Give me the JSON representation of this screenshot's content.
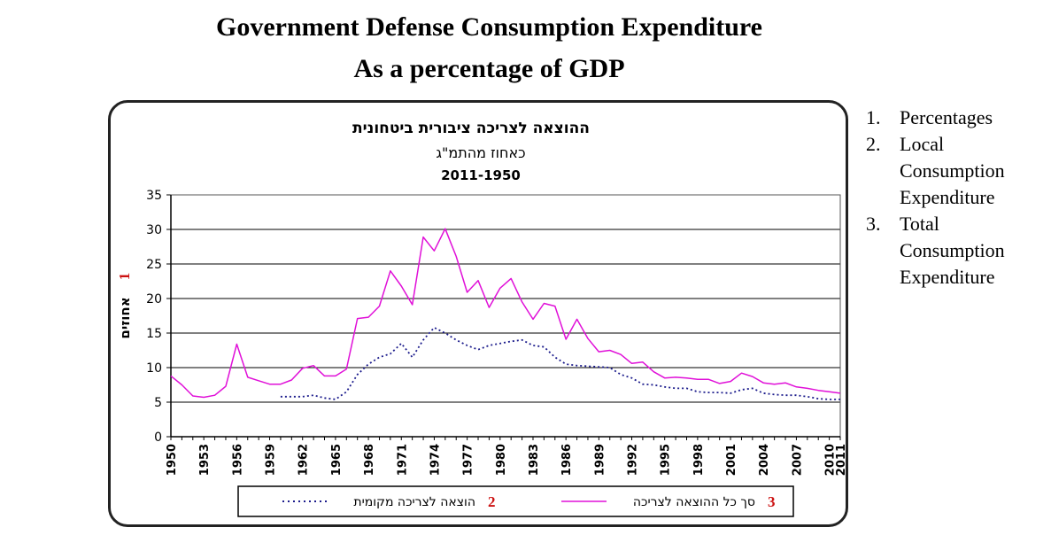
{
  "titles": [
    "Government Defense Consumption Expenditure",
    "As a percentage of GDP"
  ],
  "notes": [
    {
      "num": "1.",
      "text": "Percentages"
    },
    {
      "num": "2.",
      "text": "Local Consumption Expenditure"
    },
    {
      "num": "3.",
      "text": "Total Consumption Expenditure"
    }
  ],
  "chart_data": {
    "type": "line",
    "title": "ההוצאה לצריכה ציבורית ביטחונית",
    "subtitle": "כאחוז מהתמ\"ג",
    "subtitle2": "2011-1950",
    "ylabel": "אחוזים",
    "ylabel_marker": "1",
    "ylim": [
      0,
      35
    ],
    "yticks": [
      0,
      5,
      10,
      15,
      20,
      25,
      30,
      35
    ],
    "xlim": [
      1950,
      2011
    ],
    "xticks": [
      "1950",
      "1953",
      "1956",
      "1959",
      "1962",
      "1965",
      "1968",
      "1971",
      "1974",
      "1977",
      "1980",
      "1983",
      "1986",
      "1989",
      "1992",
      "1995",
      "1998",
      "2001",
      "2004",
      "2007",
      "2010",
      "2011"
    ],
    "grid": "horizontal",
    "legend_position": "bottom",
    "series": [
      {
        "name": "הוצאה לצריכה מקומית",
        "marker": "2",
        "color": "#1c1c8c",
        "style": "dotted",
        "x": [
          1960,
          1961,
          1962,
          1963,
          1964,
          1965,
          1966,
          1967,
          1968,
          1969,
          1970,
          1971,
          1972,
          1973,
          1974,
          1975,
          1976,
          1977,
          1978,
          1979,
          1980,
          1981,
          1982,
          1983,
          1984,
          1985,
          1986,
          1987,
          1988,
          1989,
          1990,
          1991,
          1992,
          1993,
          1994,
          1995,
          1996,
          1997,
          1998,
          1999,
          2000,
          2001,
          2002,
          2003,
          2004,
          2005,
          2006,
          2007,
          2008,
          2009,
          2010,
          2011
        ],
        "values": [
          5.8,
          5.8,
          5.8,
          6.0,
          5.6,
          5.4,
          6.5,
          9.0,
          10.5,
          11.5,
          12.0,
          13.5,
          11.5,
          14.0,
          15.8,
          15.0,
          14.0,
          13.2,
          12.6,
          13.2,
          13.5,
          13.8,
          14.0,
          13.2,
          13.0,
          11.5,
          10.5,
          10.3,
          10.2,
          10.1,
          10.0,
          9.0,
          8.5,
          7.6,
          7.5,
          7.2,
          7.0,
          7.0,
          6.5,
          6.4,
          6.4,
          6.3,
          6.8,
          7.0,
          6.3,
          6.1,
          6.0,
          6.0,
          5.8,
          5.5,
          5.4,
          5.4
        ]
      },
      {
        "name": "סך כל ההוצאה לצריכה",
        "marker": "3",
        "color": "#e010d8",
        "style": "solid",
        "x": [
          1950,
          1951,
          1952,
          1953,
          1954,
          1955,
          1956,
          1957,
          1958,
          1959,
          1960,
          1961,
          1962,
          1963,
          1964,
          1965,
          1966,
          1967,
          1968,
          1969,
          1970,
          1971,
          1972,
          1973,
          1974,
          1975,
          1976,
          1977,
          1978,
          1979,
          1980,
          1981,
          1982,
          1983,
          1984,
          1985,
          1986,
          1987,
          1988,
          1989,
          1990,
          1991,
          1992,
          1993,
          1994,
          1995,
          1996,
          1997,
          1998,
          1999,
          2000,
          2001,
          2002,
          2003,
          2004,
          2005,
          2006,
          2007,
          2008,
          2009,
          2010,
          2011
        ],
        "values": [
          8.8,
          7.5,
          5.9,
          5.7,
          6.0,
          7.3,
          13.4,
          8.6,
          8.1,
          7.6,
          7.6,
          8.2,
          9.9,
          10.3,
          8.8,
          8.8,
          9.8,
          17.1,
          17.3,
          18.9,
          24.0,
          21.8,
          19.1,
          28.9,
          26.9,
          30.1,
          26.1,
          20.9,
          22.6,
          18.7,
          21.5,
          22.9,
          19.5,
          17.0,
          19.3,
          18.9,
          14.1,
          17.0,
          14.2,
          12.3,
          12.5,
          11.9,
          10.6,
          10.8,
          9.4,
          8.5,
          8.6,
          8.5,
          8.3,
          8.3,
          7.7,
          8.0,
          9.2,
          8.7,
          7.8,
          7.6,
          7.8,
          7.2,
          7.0,
          6.7,
          6.5,
          6.3
        ]
      }
    ]
  }
}
